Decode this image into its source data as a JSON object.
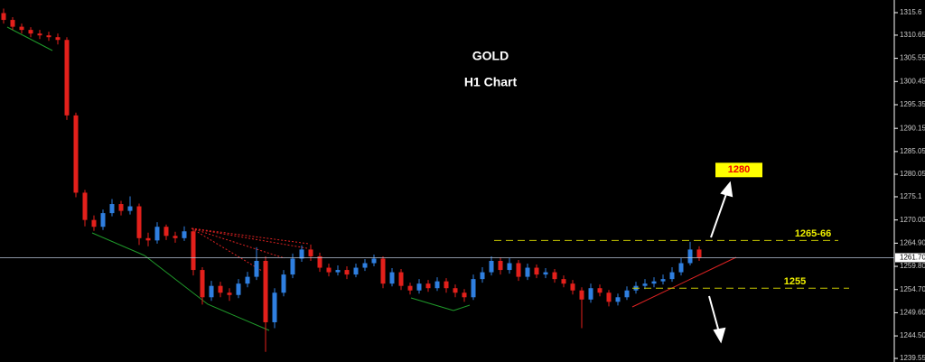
{
  "chart_data": {
    "type": "candlestick",
    "title": "GOLD",
    "subtitle": "H1 Chart",
    "series": [
      {
        "up_color": "#2f7fe0",
        "down_color": "#e3201b",
        "open": [
          1315.5,
          1314.0,
          1312.5,
          1311.8,
          1311.0,
          1310.6,
          1310.2,
          1309.6,
          1293.0,
          1276.0,
          1270.0,
          1268.5,
          1271.5,
          1273.5,
          1272.0,
          1273.0,
          1266.0,
          1265.5,
          1268.5,
          1266.5,
          1266.0,
          1267.5,
          1259.0,
          1253.0,
          1255.5,
          1254.0,
          1253.5,
          1256.0,
          1257.5,
          1261.0,
          1247.5,
          1254.0,
          1258.0,
          1261.5,
          1263.5,
          1262.0,
          1259.5,
          1258.5,
          1259.0,
          1258.0,
          1259.5,
          1260.5,
          1261.5,
          1256.0,
          1258.5,
          1255.5,
          1254.5,
          1256.0,
          1255.0,
          1256.5,
          1255.0,
          1254.0,
          1253.0,
          1257.0,
          1258.5,
          1261.0,
          1259.0,
          1260.5,
          1257.5,
          1259.5,
          1258.0,
          1258.5,
          1257.0,
          1256.0,
          1254.5,
          1252.5,
          1255.0,
          1254.0,
          1252.0,
          1253.0,
          1254.5,
          1255.5,
          1256.0,
          1256.5,
          1257.0,
          1258.5,
          1260.5,
          1263.5
        ],
        "high": [
          1316.5,
          1314.6,
          1313.2,
          1312.4,
          1311.8,
          1311.4,
          1311.0,
          1310.2,
          1293.6,
          1276.6,
          1271.0,
          1272.3,
          1274.6,
          1274.2,
          1275.2,
          1273.6,
          1267.2,
          1269.5,
          1269.0,
          1267.4,
          1268.6,
          1268.2,
          1259.6,
          1256.6,
          1256.4,
          1255.0,
          1257.0,
          1258.6,
          1264.0,
          1262.0,
          1255.0,
          1259.0,
          1262.6,
          1264.4,
          1264.6,
          1262.8,
          1260.4,
          1260.0,
          1259.8,
          1260.4,
          1261.4,
          1262.4,
          1262.0,
          1259.4,
          1259.2,
          1256.2,
          1257.0,
          1256.8,
          1257.4,
          1257.2,
          1255.8,
          1254.8,
          1258.0,
          1259.6,
          1262.0,
          1261.8,
          1261.6,
          1261.2,
          1260.4,
          1260.2,
          1259.4,
          1259.2,
          1257.8,
          1256.8,
          1255.2,
          1256.0,
          1255.8,
          1254.6,
          1253.8,
          1255.4,
          1256.4,
          1257.0,
          1257.4,
          1258.0,
          1259.6,
          1261.6,
          1265.2,
          1264.2
        ],
        "low": [
          1313.2,
          1311.8,
          1311.0,
          1310.2,
          1309.8,
          1309.4,
          1308.6,
          1292.0,
          1275.0,
          1268.6,
          1267.6,
          1267.8,
          1270.8,
          1271.0,
          1271.2,
          1264.5,
          1264.2,
          1264.8,
          1265.6,
          1265.0,
          1265.4,
          1257.8,
          1251.4,
          1252.2,
          1253.0,
          1252.2,
          1252.8,
          1255.2,
          1256.8,
          1241.0,
          1246.2,
          1253.2,
          1257.2,
          1260.8,
          1261.0,
          1258.6,
          1257.6,
          1257.8,
          1257.0,
          1257.4,
          1258.8,
          1259.8,
          1255.0,
          1255.4,
          1254.6,
          1253.6,
          1253.8,
          1254.2,
          1254.4,
          1254.0,
          1253.0,
          1252.0,
          1252.4,
          1256.2,
          1257.8,
          1258.0,
          1258.2,
          1256.6,
          1256.8,
          1257.2,
          1257.2,
          1256.2,
          1255.2,
          1253.6,
          1246.2,
          1251.8,
          1253.2,
          1251.0,
          1251.2,
          1252.4,
          1253.8,
          1254.8,
          1255.2,
          1255.8,
          1256.4,
          1257.8,
          1260.0,
          1261.0
        ],
        "close": [
          1314.0,
          1312.5,
          1311.8,
          1311.0,
          1310.6,
          1310.2,
          1309.6,
          1293.0,
          1276.0,
          1270.0,
          1268.5,
          1271.5,
          1273.5,
          1272.0,
          1273.0,
          1266.0,
          1265.5,
          1268.5,
          1266.5,
          1266.0,
          1267.5,
          1259.0,
          1253.0,
          1255.5,
          1254.0,
          1253.5,
          1256.0,
          1257.5,
          1261.0,
          1247.5,
          1254.0,
          1258.0,
          1261.5,
          1263.5,
          1262.0,
          1259.5,
          1258.5,
          1259.0,
          1258.0,
          1259.5,
          1260.5,
          1261.5,
          1256.0,
          1258.5,
          1255.5,
          1254.5,
          1256.0,
          1255.0,
          1256.5,
          1255.0,
          1254.0,
          1253.0,
          1257.0,
          1258.5,
          1261.0,
          1259.0,
          1260.5,
          1257.5,
          1259.5,
          1258.0,
          1258.5,
          1257.0,
          1256.0,
          1254.5,
          1252.5,
          1255.0,
          1254.0,
          1252.0,
          1253.0,
          1254.5,
          1255.5,
          1256.0,
          1256.5,
          1257.0,
          1258.5,
          1260.5,
          1263.5,
          1261.7
        ]
      }
    ],
    "ylim": [
      1238.76,
      1318.38
    ],
    "yticks": [
      1315.6,
      1310.65,
      1305.55,
      1300.45,
      1295.35,
      1290.15,
      1285.05,
      1280.05,
      1275.1,
      {
        "value": 1270,
        "label": "1270.00"
      },
      {
        "value": 1264.9,
        "label": "1264.90"
      },
      {
        "value": 1259.8,
        "label": "1259.80"
      },
      {
        "value": 1254.7,
        "label": "1254.70"
      },
      {
        "value": 1249.6,
        "label": "1249.60"
      },
      {
        "value": 1244.5,
        "label": "1244.50"
      },
      1239.55
    ],
    "current_price": {
      "value": 1261.7,
      "label": "1261.70"
    },
    "levels": [
      {
        "value": 1265.5,
        "label": "1265-66"
      },
      1255
    ],
    "target": 1280
  }
}
